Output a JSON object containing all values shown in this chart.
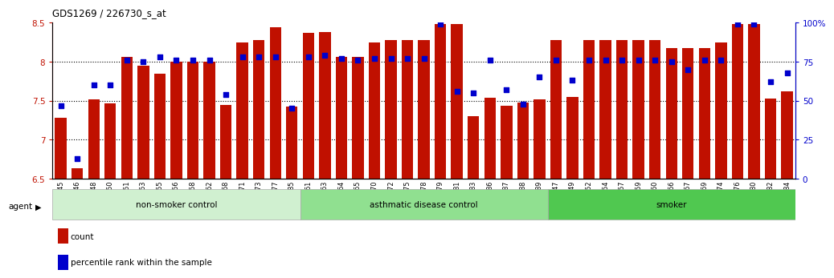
{
  "title": "GDS1269 / 226730_s_at",
  "samples": [
    "GSM38345",
    "GSM38346",
    "GSM38348",
    "GSM38350",
    "GSM38351",
    "GSM38353",
    "GSM38355",
    "GSM38356",
    "GSM38358",
    "GSM38362",
    "GSM38368",
    "GSM38371",
    "GSM38373",
    "GSM38377",
    "GSM38385",
    "GSM38361",
    "GSM38363",
    "GSM38364",
    "GSM38365",
    "GSM38370",
    "GSM38372",
    "GSM38375",
    "GSM38378",
    "GSM38379",
    "GSM38381",
    "GSM38383",
    "GSM38386",
    "GSM38387",
    "GSM38388",
    "GSM38389",
    "GSM38347",
    "GSM38349",
    "GSM38352",
    "GSM38354",
    "GSM38357",
    "GSM38359",
    "GSM38360",
    "GSM38366",
    "GSM38367",
    "GSM38369",
    "GSM38374",
    "GSM38376",
    "GSM38380",
    "GSM38382",
    "GSM38384"
  ],
  "bar_values": [
    7.28,
    6.63,
    7.52,
    7.47,
    8.06,
    7.95,
    7.85,
    8.0,
    8.0,
    8.0,
    7.45,
    8.25,
    8.28,
    8.44,
    7.42,
    8.37,
    8.38,
    8.06,
    8.06,
    8.25,
    8.28,
    8.28,
    8.28,
    8.48,
    8.48,
    7.3,
    7.54,
    7.44,
    7.48,
    7.52,
    8.28,
    7.55,
    8.28,
    8.28,
    8.28,
    8.28,
    8.28,
    8.17,
    8.17,
    8.17,
    8.25,
    8.48,
    8.48,
    7.53,
    7.62
  ],
  "percentile_values": [
    47,
    13,
    60,
    60,
    76,
    75,
    78,
    76,
    76,
    76,
    54,
    78,
    78,
    78,
    45,
    78,
    79,
    77,
    76,
    77,
    77,
    77,
    77,
    99,
    56,
    55,
    76,
    57,
    48,
    65,
    76,
    63,
    76,
    76,
    76,
    76,
    76,
    75,
    70,
    76,
    76,
    99,
    99,
    62,
    68
  ],
  "groups": [
    {
      "label": "non-smoker control",
      "start": 0,
      "end": 15,
      "color": "#d0f0d0"
    },
    {
      "label": "asthmatic disease control",
      "start": 15,
      "end": 30,
      "color": "#90e090"
    },
    {
      "label": "smoker",
      "start": 30,
      "end": 45,
      "color": "#50c850"
    }
  ],
  "bar_color": "#c01000",
  "dot_color": "#0000cc",
  "ylim_left": [
    6.5,
    8.5
  ],
  "ylim_right": [
    0,
    100
  ],
  "yticks_left": [
    6.5,
    7.0,
    7.5,
    8.0,
    8.5
  ],
  "ytick_labels_left": [
    "6.5",
    "7",
    "7.5",
    "8",
    "8.5"
  ],
  "yticks_right": [
    0,
    25,
    50,
    75,
    100
  ],
  "ytick_labels_right": [
    "0",
    "25",
    "50",
    "75",
    "100%"
  ],
  "hlines": [
    7.0,
    7.5,
    8.0
  ],
  "legend_items": [
    {
      "label": "count",
      "color": "#c01000"
    },
    {
      "label": "percentile rank within the sample",
      "color": "#0000cc"
    }
  ]
}
